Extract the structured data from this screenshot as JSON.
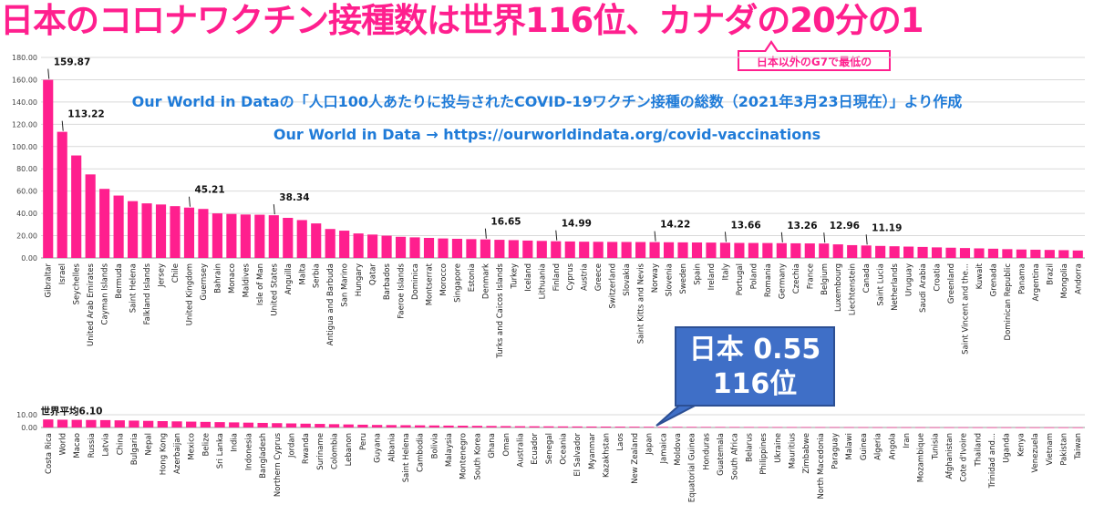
{
  "title": "日本のコロナワクチン接種数は世界116位、カナダの20分の1",
  "callout": "日本以外のG7で最低の",
  "source_line1": "Our World in Dataの「人口100人あたりに投与されたCOVID-19ワクチン接種の総数（2021年3月23日現在）」より作成",
  "source_line2": "Our World in Data → https://ourworldindata.org/covid-vaccinations",
  "japan_box": {
    "line1": "日本 0.55",
    "line2": "116位"
  },
  "colors": {
    "bar": "#ff1f8e",
    "title": "#ff1f8e",
    "source": "#1f7bd8",
    "box": "#3f6fc7"
  },
  "chart_data": [
    {
      "type": "bar",
      "ylim": [
        0,
        180
      ],
      "yticks": [
        "0.00",
        "20.00",
        "40.00",
        "60.00",
        "80.00",
        "100.00",
        "120.00",
        "140.00",
        "160.00",
        "180.00"
      ],
      "categories": [
        "Gibraltar",
        "Israel",
        "Seychelles",
        "United Arab Emirates",
        "Cayman Islands",
        "Bermuda",
        "Saint Helena",
        "Falkland Islands",
        "Jersey",
        "Chile",
        "United Kingdom",
        "Guernsey",
        "Bahrain",
        "Monaco",
        "Maldives",
        "Isle of Man",
        "United States",
        "Anguilla",
        "Malta",
        "Serbia",
        "Antigua and Barbuda",
        "San Marino",
        "Hungary",
        "Qatar",
        "Barbados",
        "Faeroe Islands",
        "Dominica",
        "Montserrat",
        "Morocco",
        "Singapore",
        "Estonia",
        "Denmark",
        "Turks and Caicos Islands",
        "Turkey",
        "Iceland",
        "Lithuania",
        "Finland",
        "Cyprus",
        "Austria",
        "Greece",
        "Switzerland",
        "Slovakia",
        "Saint Kitts and Nevis",
        "Norway",
        "Slovenia",
        "Sweden",
        "Spain",
        "Ireland",
        "Italy",
        "Portugal",
        "Poland",
        "Romania",
        "Germany",
        "Czechia",
        "France",
        "Belgium",
        "Luxembourg",
        "Liechtenstein",
        "Canada",
        "Saint Lucia",
        "Netherlands",
        "Uruguay",
        "Saudi Arabia",
        "Croatia",
        "Greenland",
        "Saint Vincent and the...",
        "Kuwait",
        "Grenada",
        "Dominican Republic",
        "Panama",
        "Argentina",
        "Brazil",
        "Mongolia",
        "Andorra"
      ],
      "values": [
        159.87,
        113.22,
        92,
        75,
        62,
        56,
        51,
        49,
        48,
        46.5,
        45.21,
        44,
        40,
        39.5,
        39,
        38.8,
        38.34,
        36,
        34,
        31,
        26,
        24.5,
        22,
        21,
        20,
        19,
        18.5,
        18,
        17.5,
        17.2,
        16.9,
        16.65,
        16.3,
        16,
        15.6,
        15.3,
        14.99,
        14.8,
        14.6,
        14.5,
        14.4,
        14.35,
        14.3,
        14.22,
        14.1,
        14,
        13.9,
        13.8,
        13.66,
        13.5,
        13.45,
        13.4,
        13.26,
        13.15,
        13.05,
        12.96,
        12.2,
        11.5,
        11.19,
        10.8,
        10.5,
        10.2,
        9.9,
        9.5,
        9.2,
        8.9,
        8.6,
        8.3,
        7.9,
        7.6,
        7.4,
        7.2,
        7,
        6.7
      ],
      "data_labels": {
        "Gibraltar": "159.87",
        "Israel": "113.22",
        "United Kingdom": "45.21",
        "United States": "38.34",
        "Denmark": "16.65",
        "Finland": "14.99",
        "Norway": "14.22",
        "Italy": "13.66",
        "Germany": "13.26",
        "Belgium": "12.96",
        "Canada": "11.19"
      }
    },
    {
      "type": "bar",
      "ylim": [
        0,
        10
      ],
      "yticks": [
        "0.00",
        "10.00"
      ],
      "categories": [
        "Costa Rica",
        "World",
        "Macao",
        "Russia",
        "Latvia",
        "China",
        "Bulgaria",
        "Nepal",
        "Hong Kong",
        "Azerbaijan",
        "Mexico",
        "Belize",
        "Sri Lanka",
        "India",
        "Indonesia",
        "Bangladesh",
        "Northern Cyprus",
        "Jordan",
        "Rwanda",
        "Suriname",
        "Colombia",
        "Lebanon",
        "Peru",
        "Guyana",
        "Albania",
        "Saint Helena",
        "Cambodia",
        "Bolivia",
        "Malaysia",
        "Montenegro",
        "South Korea",
        "Ghana",
        "Oman",
        "Australia",
        "Ecuador",
        "Senegal",
        "Oceania",
        "El Salvador",
        "Myanmar",
        "Kazakhstan",
        "Laos",
        "New Zealand",
        "Japan",
        "Jamaica",
        "Moldova",
        "Equatorial Guinea",
        "Honduras",
        "Guatemala",
        "South Africa",
        "Belarus",
        "Philippines",
        "Ukraine",
        "Mauritius",
        "Zimbabwe",
        "North Macedonia",
        "Paraguay",
        "Malawi",
        "Guinea",
        "Algeria",
        "Angola",
        "Iran",
        "Mozambique",
        "Tunisia",
        "Afghanistan",
        "Cote d'Ivoire",
        "Thailand",
        "Trinidad and...",
        "Uganda",
        "Kenya",
        "Venezuela",
        "Vietnam",
        "Pakistan",
        "Taiwan"
      ],
      "values": [
        6.3,
        6.1,
        6.0,
        5.9,
        5.8,
        5.6,
        5.4,
        5.2,
        5.0,
        4.8,
        4.6,
        4.4,
        4.2,
        4.0,
        3.8,
        3.6,
        3.4,
        3.2,
        3.0,
        2.8,
        2.6,
        2.4,
        2.2,
        2.0,
        1.9,
        1.8,
        1.7,
        1.6,
        1.5,
        1.4,
        1.3,
        1.2,
        1.1,
        1.0,
        0.95,
        0.9,
        0.85,
        0.8,
        0.75,
        0.7,
        0.65,
        0.6,
        0.55,
        0.5,
        0.48,
        0.46,
        0.44,
        0.42,
        0.4,
        0.38,
        0.36,
        0.34,
        0.32,
        0.3,
        0.28,
        0.26,
        0.24,
        0.22,
        0.2,
        0.19,
        0.18,
        0.17,
        0.16,
        0.15,
        0.14,
        0.13,
        0.12,
        0.11,
        0.1,
        0.09,
        0.08,
        0.07,
        0.06
      ],
      "data_labels": {
        "World": "世界平均6.10"
      }
    }
  ]
}
